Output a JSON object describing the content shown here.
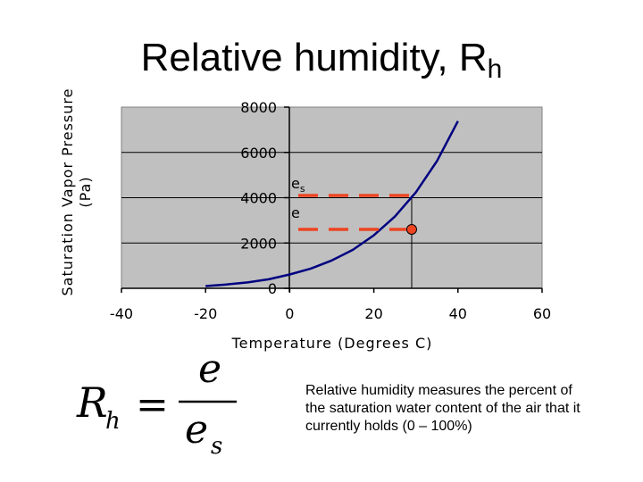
{
  "title": {
    "text": "Relative humidity, R",
    "sub": "h"
  },
  "description": "Relative humidity measures the percent of the saturation water content of the air that it currently holds (0 – 100%)",
  "formula": {
    "lhs": "R",
    "lhs_sub": "h",
    "eq": "=",
    "num": "e",
    "den": "e",
    "den_sub": "s"
  },
  "colors": {
    "plot_bg": "#c0c0c0",
    "curve": "#000080",
    "marker": "#ee4422",
    "grid": "#000000"
  },
  "chart_data": {
    "type": "line",
    "ylabel_line1": "Saturation Vapor Pressure",
    "ylabel_line2": "(Pa)",
    "xlabel": "Temperature (Degrees C)",
    "xlim": [
      -40,
      60
    ],
    "ylim": [
      0,
      8000
    ],
    "xticks": [
      "-40",
      "-20",
      "0",
      "20",
      "40",
      "60"
    ],
    "yticks": [
      "0",
      "2000",
      "4000",
      "6000",
      "8000"
    ],
    "grid": true,
    "series": [
      {
        "x": [
          -20,
          -15,
          -10,
          -5,
          0,
          5,
          10,
          15,
          20,
          25,
          30,
          35,
          40
        ],
        "y": [
          100,
          170,
          260,
          400,
          610,
          870,
          1230,
          1700,
          2340,
          3170,
          4240,
          5620,
          7380
        ]
      }
    ],
    "annotations": {
      "es_label": "e",
      "es_sub": "s",
      "e_label": "e",
      "es_value": 4100,
      "e_value": 2600,
      "temperature": 29
    }
  }
}
